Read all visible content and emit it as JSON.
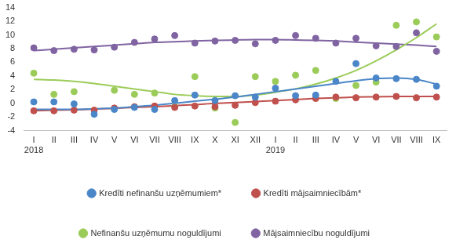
{
  "chart_data": {
    "type": "scatter",
    "categories": [
      [
        "I",
        "2018"
      ],
      "II",
      "III",
      "IV",
      "V",
      "VI",
      "VII",
      "VIII",
      "IX",
      "X",
      "XI",
      "XII",
      [
        "I",
        "2019"
      ],
      "II",
      "III",
      "IV",
      "V",
      "VI",
      "VII",
      "VIII",
      "IX"
    ],
    "ylim": [
      -4,
      14
    ],
    "yticks": [
      -4,
      -2,
      0,
      2,
      4,
      6,
      8,
      10,
      12,
      14
    ],
    "grid": false,
    "legend": "bottom",
    "series": [
      {
        "name": "Kredīti nefinanšu uzņēmumiem*",
        "color": "#4a86c8",
        "marker": "circle",
        "values": [
          0.2,
          0.2,
          -0.1,
          -1.6,
          -0.9,
          -0.6,
          -0.9,
          0.4,
          1.2,
          0.4,
          1.1,
          0.9,
          2.2,
          1.1,
          1.2,
          3.2,
          5.8,
          3.7,
          3.6,
          3.5,
          2.5
        ],
        "trend": [
          -0.9,
          -0.9,
          -0.9,
          -0.8,
          -0.7,
          -0.5,
          -0.3,
          0.0,
          0.3,
          0.6,
          0.9,
          1.3,
          1.7,
          2.1,
          2.5,
          2.9,
          3.3,
          3.6,
          3.7,
          3.5,
          2.8
        ]
      },
      {
        "name": "Kredīti mājsaimniecībām*",
        "color": "#c0504d",
        "marker": "circle",
        "values": [
          -1.1,
          -1.1,
          -1.0,
          -1.0,
          -0.7,
          -0.5,
          -0.4,
          -0.6,
          -0.4,
          -0.5,
          -0.3,
          0.1,
          0.3,
          0.5,
          0.7,
          0.9,
          0.8,
          0.9,
          1.0,
          0.8,
          0.9
        ],
        "trend": [
          -1.1,
          -1.0,
          -0.95,
          -0.85,
          -0.75,
          -0.6,
          -0.5,
          -0.35,
          -0.2,
          0.0,
          0.1,
          0.25,
          0.4,
          0.55,
          0.7,
          0.8,
          0.9,
          0.95,
          1.0,
          1.0,
          1.0
        ]
      },
      {
        "name": "Nefinanšu uzņēmumu noguldījumi",
        "color": "#9bcc59",
        "marker": "circle",
        "values": [
          4.4,
          1.3,
          1.7,
          null,
          1.9,
          1.3,
          1.5,
          -0.5,
          3.9,
          -0.7,
          -2.8,
          3.9,
          3.2,
          4.1,
          4.8,
          0.7,
          2.6,
          3.1,
          11.4,
          11.9,
          9.7
        ],
        "trend": [
          3.5,
          3.4,
          3.2,
          2.9,
          2.5,
          2.1,
          1.7,
          1.3,
          1.1,
          1.0,
          1.0,
          1.2,
          1.6,
          2.1,
          2.8,
          3.7,
          4.8,
          6.2,
          7.8,
          9.6,
          11.6
        ]
      },
      {
        "name": "Mājsaimniecību noguldījumi",
        "color": "#8064a2",
        "marker": "circle",
        "values": [
          8.1,
          7.7,
          7.9,
          7.8,
          8.2,
          8.9,
          9.4,
          9.9,
          8.8,
          9.1,
          9.2,
          8.7,
          9.2,
          9.9,
          9.5,
          8.8,
          9.5,
          8.4,
          8.3,
          10.3,
          7.6
        ],
        "trend": [
          7.7,
          7.9,
          8.1,
          8.3,
          8.5,
          8.7,
          8.9,
          9.0,
          9.1,
          9.2,
          9.25,
          9.3,
          9.3,
          9.25,
          9.2,
          9.1,
          8.95,
          8.8,
          8.65,
          8.5,
          8.3
        ]
      }
    ]
  }
}
